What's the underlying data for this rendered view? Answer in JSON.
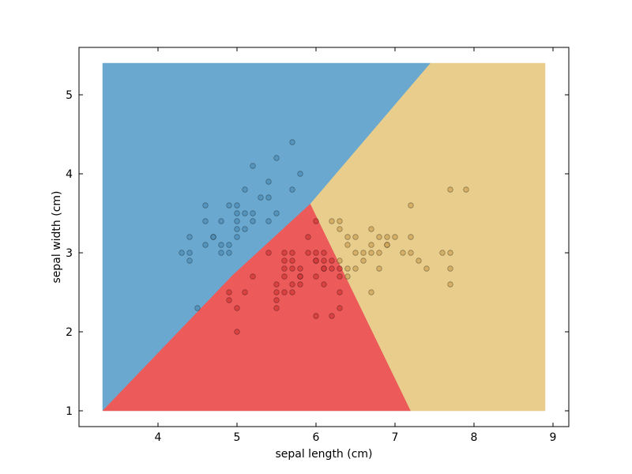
{
  "chart_data": {
    "type": "scatter",
    "title": "",
    "xlabel": "sepal length (cm)",
    "ylabel": "sepal width (cm)",
    "xlim": [
      3.0,
      9.2
    ],
    "ylim": [
      0.8,
      5.6
    ],
    "xticks": [
      "4",
      "5",
      "6",
      "7",
      "8",
      "9"
    ],
    "xtick_values": [
      4,
      5,
      6,
      7,
      8,
      9
    ],
    "yticks": [
      "1",
      "2",
      "3",
      "4",
      "5"
    ],
    "ytick_values": [
      1,
      2,
      3,
      4,
      5
    ],
    "grid": false,
    "decision_regions": {
      "x_range": [
        3.3,
        8.9
      ],
      "y_range": [
        1.0,
        5.4
      ],
      "regions": [
        {
          "class": 0,
          "color": "#6aa8cf",
          "polygon": [
            [
              3.3,
              1.0
            ],
            [
              3.3,
              5.4
            ],
            [
              7.45,
              5.4
            ],
            [
              5.93,
              3.62
            ],
            [
              4.95,
              2.72
            ]
          ]
        },
        {
          "class": 1,
          "color": "#ec5a5a",
          "polygon": [
            [
              3.3,
              1.0
            ],
            [
              4.95,
              2.72
            ],
            [
              5.93,
              3.62
            ],
            [
              7.2,
              1.0
            ]
          ]
        },
        {
          "class": 2,
          "color": "#e8cd8c",
          "polygon": [
            [
              7.45,
              5.4
            ],
            [
              8.9,
              5.4
            ],
            [
              8.9,
              1.0
            ],
            [
              7.2,
              1.0
            ],
            [
              5.93,
              3.62
            ]
          ]
        }
      ]
    },
    "series": [
      {
        "class": 0,
        "color": "#4f8db6",
        "points": [
          [
            5.1,
            3.5
          ],
          [
            4.9,
            3.0
          ],
          [
            4.7,
            3.2
          ],
          [
            4.6,
            3.1
          ],
          [
            5.0,
            3.6
          ],
          [
            5.4,
            3.9
          ],
          [
            4.6,
            3.4
          ],
          [
            5.0,
            3.4
          ],
          [
            4.4,
            2.9
          ],
          [
            4.9,
            3.1
          ],
          [
            5.4,
            3.7
          ],
          [
            4.8,
            3.4
          ],
          [
            4.8,
            3.0
          ],
          [
            4.3,
            3.0
          ],
          [
            5.8,
            4.0
          ],
          [
            5.7,
            4.4
          ],
          [
            5.1,
            3.8
          ],
          [
            5.7,
            3.8
          ],
          [
            5.2,
            4.1
          ],
          [
            5.5,
            4.2
          ],
          [
            5.2,
            3.5
          ],
          [
            5.0,
            3.2
          ],
          [
            4.4,
            3.2
          ],
          [
            5.3,
            3.7
          ],
          [
            5.0,
            3.3
          ],
          [
            4.5,
            2.3
          ],
          [
            4.4,
            3.0
          ],
          [
            4.6,
            3.6
          ],
          [
            5.1,
            3.3
          ],
          [
            4.8,
            3.1
          ],
          [
            5.4,
            3.4
          ],
          [
            5.2,
            3.4
          ],
          [
            5.5,
            3.5
          ],
          [
            4.9,
            3.6
          ],
          [
            5.0,
            3.5
          ],
          [
            4.7,
            3.2
          ]
        ]
      },
      {
        "class": 1,
        "color": "#d43b3b",
        "points": [
          [
            5.5,
            2.3
          ],
          [
            5.5,
            2.4
          ],
          [
            5.5,
            2.5
          ],
          [
            5.5,
            2.6
          ],
          [
            4.9,
            2.4
          ],
          [
            4.9,
            2.5
          ],
          [
            5.0,
            2.0
          ],
          [
            5.0,
            2.3
          ],
          [
            5.1,
            2.5
          ],
          [
            5.2,
            2.7
          ],
          [
            5.4,
            3.0
          ],
          [
            5.6,
            2.5
          ],
          [
            5.6,
            2.7
          ],
          [
            5.6,
            2.8
          ],
          [
            5.6,
            2.9
          ],
          [
            5.6,
            3.0
          ],
          [
            5.7,
            2.5
          ],
          [
            5.7,
            2.6
          ],
          [
            5.7,
            2.8
          ],
          [
            5.7,
            2.9
          ],
          [
            5.7,
            3.0
          ],
          [
            5.8,
            2.6
          ],
          [
            5.8,
            2.7
          ],
          [
            5.8,
            2.8
          ],
          [
            5.9,
            3.0
          ],
          [
            5.9,
            3.2
          ],
          [
            6.0,
            2.2
          ],
          [
            6.0,
            2.7
          ],
          [
            6.0,
            2.9
          ],
          [
            6.0,
            3.0
          ],
          [
            6.0,
            3.4
          ],
          [
            6.1,
            2.8
          ],
          [
            6.1,
            2.9
          ],
          [
            6.1,
            3.0
          ],
          [
            6.1,
            2.6
          ],
          [
            6.2,
            2.2
          ],
          [
            6.2,
            2.8
          ],
          [
            6.2,
            2.9
          ],
          [
            6.3,
            2.3
          ],
          [
            6.3,
            2.5
          ],
          [
            6.3,
            2.7
          ],
          [
            6.3,
            2.8
          ],
          [
            6.1,
            2.8
          ],
          [
            6.0,
            2.9
          ],
          [
            5.8,
            2.7
          ]
        ]
      },
      {
        "class": 2,
        "color": "#cfa45a",
        "points": [
          [
            6.2,
            3.4
          ],
          [
            6.3,
            3.3
          ],
          [
            6.3,
            3.4
          ],
          [
            6.4,
            3.1
          ],
          [
            6.4,
            3.2
          ],
          [
            6.4,
            2.8
          ],
          [
            6.4,
            2.7
          ],
          [
            6.5,
            3.0
          ],
          [
            6.5,
            3.2
          ],
          [
            6.5,
            2.8
          ],
          [
            6.6,
            2.9
          ],
          [
            6.6,
            3.0
          ],
          [
            6.7,
            3.0
          ],
          [
            6.7,
            3.1
          ],
          [
            6.7,
            3.3
          ],
          [
            6.7,
            2.5
          ],
          [
            6.8,
            2.8
          ],
          [
            6.8,
            3.0
          ],
          [
            6.8,
            3.2
          ],
          [
            6.9,
            3.1
          ],
          [
            6.9,
            3.2
          ],
          [
            7.0,
            3.2
          ],
          [
            7.1,
            3.0
          ],
          [
            7.2,
            3.0
          ],
          [
            7.2,
            3.2
          ],
          [
            7.2,
            3.6
          ],
          [
            7.3,
            2.9
          ],
          [
            7.4,
            2.8
          ],
          [
            7.6,
            3.0
          ],
          [
            7.7,
            3.0
          ],
          [
            7.7,
            2.8
          ],
          [
            7.7,
            2.6
          ],
          [
            7.7,
            3.8
          ],
          [
            7.9,
            3.8
          ],
          [
            6.9,
            3.1
          ],
          [
            6.3,
            2.9
          ]
        ]
      }
    ]
  }
}
